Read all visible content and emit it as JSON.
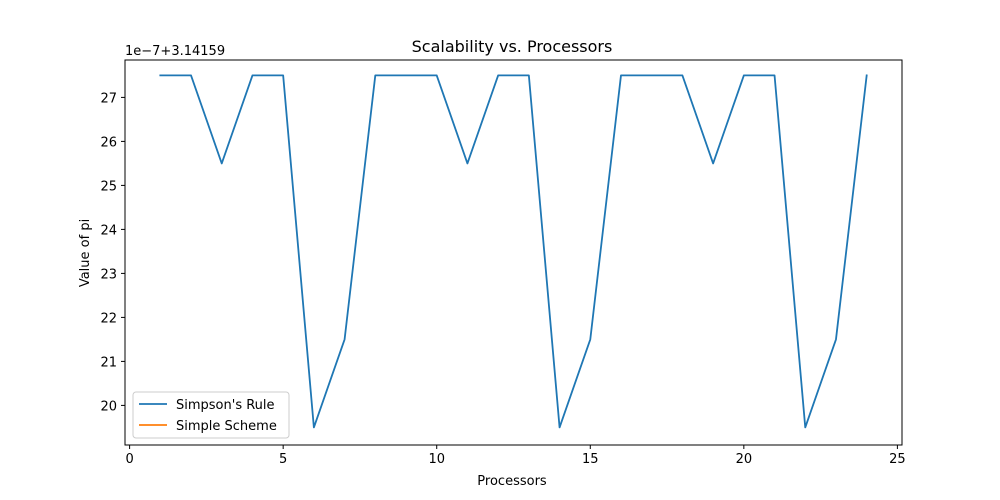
{
  "chart_data": {
    "type": "line",
    "title": "Scalability vs. Processors",
    "xlabel": "Processors",
    "ylabel": "Value of pi",
    "y_offset_label": "1e−7+3.14159",
    "xlim": [
      -0.15,
      25.15
    ],
    "ylim": [
      19.1,
      27.85
    ],
    "xticks": [
      0,
      5,
      10,
      15,
      20,
      25
    ],
    "yticks": [
      20,
      21,
      22,
      23,
      24,
      25,
      26,
      27
    ],
    "grid": false,
    "legend_position": "lower-left",
    "series": [
      {
        "name": "Simpson's Rule",
        "color": "#1f77b4",
        "x": [
          1,
          2,
          3,
          4,
          5,
          6,
          7,
          8,
          9,
          10,
          11,
          12,
          13,
          14,
          15,
          16,
          17,
          18,
          19,
          20,
          21,
          22,
          23,
          24
        ],
        "y": [
          27.5,
          27.5,
          25.5,
          27.5,
          27.5,
          19.5,
          21.5,
          27.5,
          27.5,
          27.5,
          25.5,
          27.5,
          27.5,
          19.5,
          21.5,
          27.5,
          27.5,
          27.5,
          25.5,
          27.5,
          27.5,
          19.5,
          21.5,
          27.5
        ]
      },
      {
        "name": "Simple Scheme",
        "color": "#ff7f0e",
        "x": [],
        "y": []
      }
    ]
  }
}
